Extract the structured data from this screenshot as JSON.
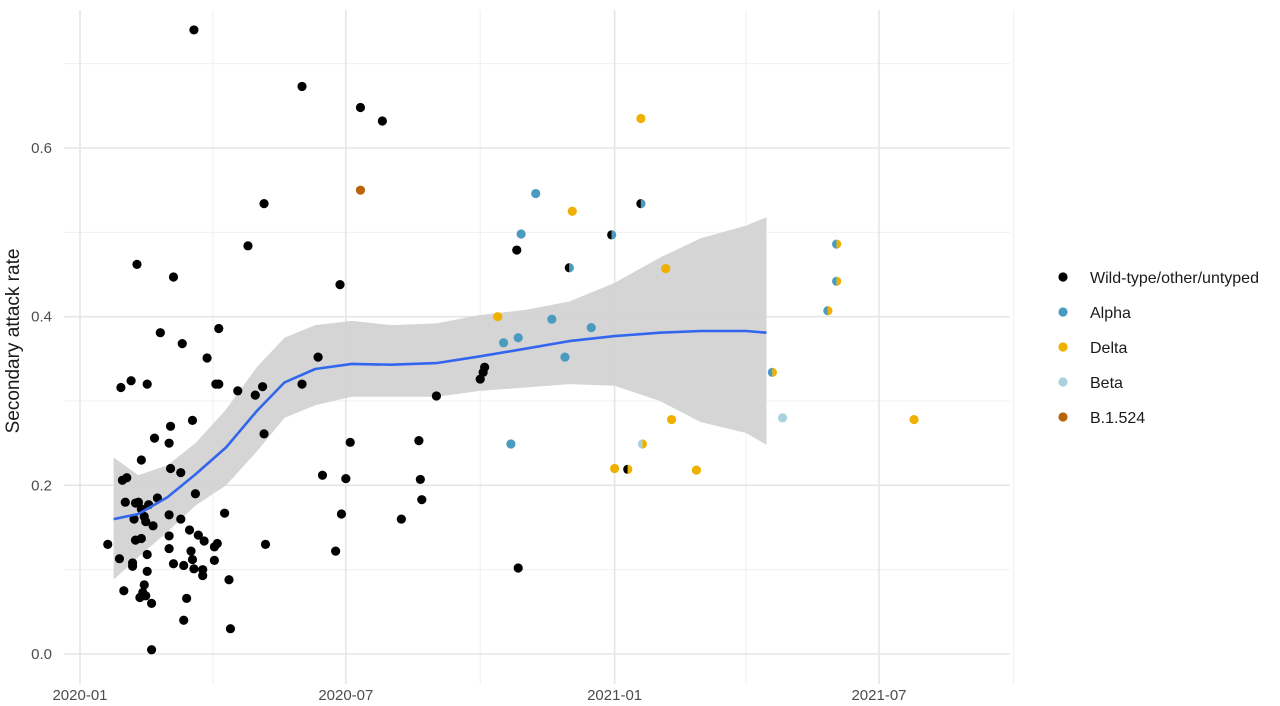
{
  "chart_data": {
    "type": "scatter",
    "title": "",
    "xlabel": "",
    "ylabel": "Secondary attack rate",
    "x_range": [
      "2020-01-01",
      "2021-09-30"
    ],
    "ylim": [
      -0.03,
      0.76
    ],
    "x_ticks": [
      {
        "date": "2020-01-01",
        "label": "2020-01"
      },
      {
        "date": "2020-07-01",
        "label": "2020-07"
      },
      {
        "date": "2021-01-01",
        "label": "2021-01"
      },
      {
        "date": "2021-07-01",
        "label": "2021-07"
      }
    ],
    "x_minor_ticks": [
      "2020-04-01",
      "2020-10-01",
      "2021-04-01",
      "2021-10-01"
    ],
    "y_ticks": [
      {
        "value": 0.0,
        "label": "0.0"
      },
      {
        "value": 0.2,
        "label": "0.2"
      },
      {
        "value": 0.4,
        "label": "0.4"
      },
      {
        "value": 0.6,
        "label": "0.6"
      }
    ],
    "y_minor_ticks": [
      0.1,
      0.3,
      0.5,
      0.7
    ],
    "grid": true,
    "legend_position": "right",
    "legend": [
      {
        "name": "Wild-type/other/untyped",
        "color": "#000000"
      },
      {
        "name": "Alpha",
        "color": "#4a9bc0"
      },
      {
        "name": "Delta",
        "color": "#f0b000"
      },
      {
        "name": "Beta",
        "color": "#a9d2df"
      },
      {
        "name": "B.1.524",
        "color": "#b8640a"
      }
    ],
    "series": [
      {
        "name": "Wild-type/other/untyped",
        "points": [
          [
            "2020-01-20",
            0.13
          ],
          [
            "2020-01-28",
            0.113
          ],
          [
            "2020-01-29",
            0.316
          ],
          [
            "2020-01-30",
            0.206
          ],
          [
            "2020-01-31",
            0.075
          ],
          [
            "2020-02-01",
            0.18
          ],
          [
            "2020-02-02",
            0.209
          ],
          [
            "2020-02-05",
            0.324
          ],
          [
            "2020-02-06",
            0.108
          ],
          [
            "2020-02-06",
            0.104
          ],
          [
            "2020-02-07",
            0.16
          ],
          [
            "2020-02-08",
            0.179
          ],
          [
            "2020-02-08",
            0.135
          ],
          [
            "2020-02-09",
            0.462
          ],
          [
            "2020-02-10",
            0.18
          ],
          [
            "2020-02-11",
            0.067
          ],
          [
            "2020-02-12",
            0.23
          ],
          [
            "2020-02-12",
            0.172
          ],
          [
            "2020-02-12",
            0.137
          ],
          [
            "2020-02-13",
            0.073
          ],
          [
            "2020-02-14",
            0.082
          ],
          [
            "2020-02-14",
            0.163
          ],
          [
            "2020-02-15",
            0.157
          ],
          [
            "2020-02-15",
            0.069
          ],
          [
            "2020-02-16",
            0.118
          ],
          [
            "2020-02-16",
            0.098
          ],
          [
            "2020-02-16",
            0.32
          ],
          [
            "2020-02-17",
            0.177
          ],
          [
            "2020-02-19",
            0.06
          ],
          [
            "2020-02-19",
            0.005
          ],
          [
            "2020-02-20",
            0.152
          ],
          [
            "2020-02-21",
            0.256
          ],
          [
            "2020-02-23",
            0.185
          ],
          [
            "2020-02-25",
            0.381
          ],
          [
            "2020-03-02",
            0.165
          ],
          [
            "2020-03-02",
            0.14
          ],
          [
            "2020-03-02",
            0.25
          ],
          [
            "2020-03-02",
            0.125
          ],
          [
            "2020-03-03",
            0.27
          ],
          [
            "2020-03-03",
            0.22
          ],
          [
            "2020-03-05",
            0.447
          ],
          [
            "2020-03-05",
            0.107
          ],
          [
            "2020-03-10",
            0.16
          ],
          [
            "2020-03-10",
            0.215
          ],
          [
            "2020-03-11",
            0.368
          ],
          [
            "2020-03-12",
            0.04
          ],
          [
            "2020-03-12",
            0.105
          ],
          [
            "2020-03-14",
            0.066
          ],
          [
            "2020-03-16",
            0.147
          ],
          [
            "2020-03-17",
            0.122
          ],
          [
            "2020-03-18",
            0.277
          ],
          [
            "2020-03-18",
            0.112
          ],
          [
            "2020-03-19",
            0.74
          ],
          [
            "2020-03-19",
            0.101
          ],
          [
            "2020-03-20",
            0.19
          ],
          [
            "2020-03-22",
            0.141
          ],
          [
            "2020-03-25",
            0.1
          ],
          [
            "2020-03-25",
            0.093
          ],
          [
            "2020-03-26",
            0.134
          ],
          [
            "2020-03-28",
            0.351
          ],
          [
            "2020-04-02",
            0.111
          ],
          [
            "2020-04-02",
            0.127
          ],
          [
            "2020-04-03",
            0.32
          ],
          [
            "2020-04-04",
            0.131
          ],
          [
            "2020-04-05",
            0.386
          ],
          [
            "2020-04-05",
            0.32
          ],
          [
            "2020-04-09",
            0.167
          ],
          [
            "2020-04-12",
            0.088
          ],
          [
            "2020-04-13",
            0.03
          ],
          [
            "2020-04-18",
            0.312
          ],
          [
            "2020-04-25",
            0.484
          ],
          [
            "2020-04-30",
            0.307
          ],
          [
            "2020-05-05",
            0.317
          ],
          [
            "2020-05-06",
            0.261
          ],
          [
            "2020-05-06",
            0.534
          ],
          [
            "2020-05-07",
            0.13
          ],
          [
            "2020-06-01",
            0.673
          ],
          [
            "2020-06-01",
            0.32
          ],
          [
            "2020-06-12",
            0.352
          ],
          [
            "2020-06-15",
            0.212
          ],
          [
            "2020-06-24",
            0.122
          ],
          [
            "2020-06-27",
            0.438
          ],
          [
            "2020-06-28",
            0.166
          ],
          [
            "2020-07-01",
            0.208
          ],
          [
            "2020-07-04",
            0.251
          ],
          [
            "2020-07-11",
            0.648
          ],
          [
            "2020-07-26",
            0.632
          ],
          [
            "2020-08-08",
            0.16
          ],
          [
            "2020-08-20",
            0.253
          ],
          [
            "2020-08-21",
            0.207
          ],
          [
            "2020-08-22",
            0.183
          ],
          [
            "2020-09-01",
            0.306
          ],
          [
            "2020-10-01",
            0.326
          ],
          [
            "2020-10-03",
            0.334
          ],
          [
            "2020-10-04",
            0.34
          ],
          [
            "2020-10-26",
            0.479
          ],
          [
            "2020-10-27",
            0.102
          ]
        ],
        "color": "#000000"
      },
      {
        "name": "Alpha",
        "points": [
          [
            "2020-10-17",
            0.369
          ],
          [
            "2020-10-22",
            0.249
          ],
          [
            "2020-10-27",
            0.375
          ],
          [
            "2020-11-08",
            0.546
          ],
          [
            "2020-11-19",
            0.397
          ],
          [
            "2020-11-28",
            0.352
          ],
          [
            "2020-12-16",
            0.387
          ],
          [
            "2020-10-29",
            0.498
          ]
        ],
        "color": "#4a9bc0"
      },
      {
        "name": "Delta",
        "points": [
          [
            "2020-10-13",
            0.4
          ],
          [
            "2020-12-03",
            0.525
          ],
          [
            "2021-01-01",
            0.22
          ],
          [
            "2021-01-19",
            0.635
          ],
          [
            "2021-02-05",
            0.457
          ],
          [
            "2021-02-09",
            0.278
          ],
          [
            "2021-02-26",
            0.218
          ],
          [
            "2021-07-25",
            0.278
          ]
        ],
        "color": "#f0b000"
      },
      {
        "name": "Beta",
        "points": [
          [
            "2021-04-26",
            0.28
          ]
        ],
        "color": "#a9d2df"
      },
      {
        "name": "B.1.524",
        "points": [
          [
            "2020-07-11",
            0.55
          ]
        ],
        "color": "#b8640a"
      }
    ],
    "split_points": [
      {
        "x": "2020-12-01",
        "y": 0.458,
        "left": "#000000",
        "right": "#4a9bc0"
      },
      {
        "x": "2020-12-30",
        "y": 0.497,
        "left": "#000000",
        "right": "#4a9bc0"
      },
      {
        "x": "2021-01-19",
        "y": 0.534,
        "left": "#000000",
        "right": "#4a9bc0"
      },
      {
        "x": "2021-01-10",
        "y": 0.219,
        "left": "#000000",
        "right": "#f0b000"
      },
      {
        "x": "2021-01-20",
        "y": 0.249,
        "left": "#a9d2df",
        "right": "#f0b000"
      },
      {
        "x": "2021-04-19",
        "y": 0.334,
        "left": "#4a9bc0",
        "right": "#f0b000"
      },
      {
        "x": "2021-05-27",
        "y": 0.407,
        "left": "#4a9bc0",
        "right": "#f0b000"
      },
      {
        "x": "2021-06-02",
        "y": 0.486,
        "left": "#4a9bc0",
        "right": "#f0b000"
      },
      {
        "x": "2021-06-02",
        "y": 0.442,
        "left": "#4a9bc0",
        "right": "#f0b000"
      }
    ],
    "smooth_fit": {
      "color": "#3366ee",
      "band_color": "#d3d3d3",
      "points": [
        {
          "x": "2020-01-24",
          "y": 0.16,
          "lo": 0.088,
          "hi": 0.233
        },
        {
          "x": "2020-02-10",
          "y": 0.166,
          "lo": 0.115,
          "hi": 0.212
        },
        {
          "x": "2020-03-01",
          "y": 0.186,
          "lo": 0.145,
          "hi": 0.224
        },
        {
          "x": "2020-03-20",
          "y": 0.213,
          "lo": 0.176,
          "hi": 0.25
        },
        {
          "x": "2020-04-10",
          "y": 0.245,
          "lo": 0.2,
          "hi": 0.29
        },
        {
          "x": "2020-05-01",
          "y": 0.288,
          "lo": 0.24,
          "hi": 0.34
        },
        {
          "x": "2020-05-20",
          "y": 0.322,
          "lo": 0.28,
          "hi": 0.375
        },
        {
          "x": "2020-06-10",
          "y": 0.338,
          "lo": 0.295,
          "hi": 0.39
        },
        {
          "x": "2020-07-05",
          "y": 0.344,
          "lo": 0.305,
          "hi": 0.395
        },
        {
          "x": "2020-08-01",
          "y": 0.343,
          "lo": 0.305,
          "hi": 0.39
        },
        {
          "x": "2020-09-01",
          "y": 0.345,
          "lo": 0.305,
          "hi": 0.392
        },
        {
          "x": "2020-10-01",
          "y": 0.353,
          "lo": 0.312,
          "hi": 0.402
        },
        {
          "x": "2020-11-01",
          "y": 0.362,
          "lo": 0.316,
          "hi": 0.408
        },
        {
          "x": "2020-12-01",
          "y": 0.371,
          "lo": 0.32,
          "hi": 0.418
        },
        {
          "x": "2021-01-01",
          "y": 0.377,
          "lo": 0.318,
          "hi": 0.44
        },
        {
          "x": "2021-02-01",
          "y": 0.381,
          "lo": 0.3,
          "hi": 0.47
        },
        {
          "x": "2021-03-01",
          "y": 0.383,
          "lo": 0.275,
          "hi": 0.493
        },
        {
          "x": "2021-04-01",
          "y": 0.383,
          "lo": 0.262,
          "hi": 0.508
        },
        {
          "x": "2021-04-15",
          "y": 0.381,
          "lo": 0.248,
          "hi": 0.518
        }
      ]
    }
  }
}
